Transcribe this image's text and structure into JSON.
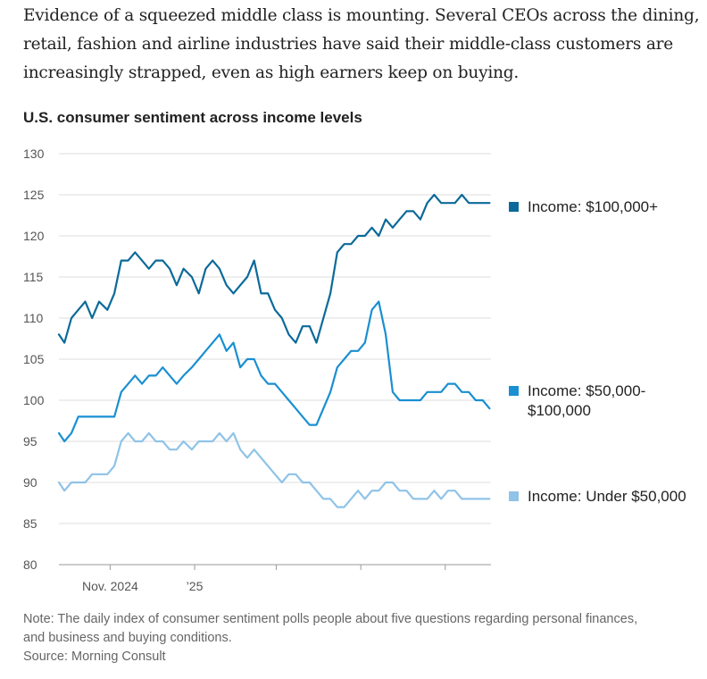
{
  "intro": {
    "line1": "Evidence of a squeezed middle class is mounting. Several CEOs across the dining,",
    "line2": "retail, fashion and airline industries have said their middle-class customers are",
    "line3": "increasingly strapped, even as high earners keep on buying."
  },
  "note": {
    "line1": "Note: The daily index of consumer sentiment polls people about five questions regarding personal finances,",
    "line2": "and business and buying conditions.",
    "line3": "Source: Morning Consult"
  },
  "chart_data": {
    "type": "line",
    "title": "U.S. consumer sentiment across income levels",
    "xlabel": "",
    "ylabel": "",
    "ylim": [
      80,
      130
    ],
    "yticks": [
      80,
      85,
      90,
      95,
      100,
      105,
      110,
      115,
      120,
      125,
      130
    ],
    "xlim": [
      "2024-09-25",
      "2025-08-03"
    ],
    "xticks": [
      {
        "date": "2024-11-01",
        "label": "Nov. 2024"
      },
      {
        "date": "2025-01-01",
        "label": "’25"
      },
      {
        "date": "2025-03-01",
        "label": ""
      },
      {
        "date": "2025-05-01",
        "label": ""
      },
      {
        "date": "2025-07-01",
        "label": ""
      }
    ],
    "grid": true,
    "legend_placement": "right, beside line ends",
    "series": [
      {
        "name": "Income: $100,000+",
        "color": "#0b6a99",
        "points": [
          [
            "2024-09-25",
            108
          ],
          [
            "2024-09-29",
            107
          ],
          [
            "2024-10-04",
            110
          ],
          [
            "2024-10-09",
            111
          ],
          [
            "2024-10-14",
            112
          ],
          [
            "2024-10-19",
            110
          ],
          [
            "2024-10-24",
            112
          ],
          [
            "2024-10-30",
            111
          ],
          [
            "2024-11-04",
            113
          ],
          [
            "2024-11-09",
            117
          ],
          [
            "2024-11-14",
            117
          ],
          [
            "2024-11-19",
            118
          ],
          [
            "2024-11-24",
            117
          ],
          [
            "2024-11-29",
            116
          ],
          [
            "2024-12-04",
            117
          ],
          [
            "2024-12-09",
            117
          ],
          [
            "2024-12-14",
            116
          ],
          [
            "2024-12-19",
            114
          ],
          [
            "2024-12-24",
            116
          ],
          [
            "2024-12-30",
            115
          ],
          [
            "2025-01-04",
            113
          ],
          [
            "2025-01-09",
            116
          ],
          [
            "2025-01-14",
            117
          ],
          [
            "2025-01-19",
            116
          ],
          [
            "2025-01-24",
            114
          ],
          [
            "2025-01-29",
            113
          ],
          [
            "2025-02-03",
            114
          ],
          [
            "2025-02-08",
            115
          ],
          [
            "2025-02-13",
            117
          ],
          [
            "2025-02-18",
            113
          ],
          [
            "2025-02-23",
            113
          ],
          [
            "2025-02-28",
            111
          ],
          [
            "2025-03-05",
            110
          ],
          [
            "2025-03-10",
            108
          ],
          [
            "2025-03-15",
            107
          ],
          [
            "2025-03-20",
            109
          ],
          [
            "2025-03-25",
            109
          ],
          [
            "2025-03-30",
            107
          ],
          [
            "2025-04-04",
            110
          ],
          [
            "2025-04-09",
            113
          ],
          [
            "2025-04-14",
            118
          ],
          [
            "2025-04-19",
            119
          ],
          [
            "2025-04-24",
            119
          ],
          [
            "2025-04-29",
            120
          ],
          [
            "2025-05-04",
            120
          ],
          [
            "2025-05-09",
            121
          ],
          [
            "2025-05-14",
            120
          ],
          [
            "2025-05-19",
            122
          ],
          [
            "2025-05-24",
            121
          ],
          [
            "2025-05-29",
            122
          ],
          [
            "2025-06-03",
            123
          ],
          [
            "2025-06-08",
            123
          ],
          [
            "2025-06-13",
            122
          ],
          [
            "2025-06-18",
            124
          ],
          [
            "2025-06-23",
            125
          ],
          [
            "2025-06-28",
            124
          ],
          [
            "2025-07-03",
            124
          ],
          [
            "2025-07-08",
            124
          ],
          [
            "2025-07-13",
            125
          ],
          [
            "2025-07-18",
            124
          ],
          [
            "2025-07-23",
            124
          ],
          [
            "2025-07-28",
            124
          ],
          [
            "2025-08-02",
            124
          ]
        ]
      },
      {
        "name": "Income: $50,000-$100,000",
        "color": "#1a8fd1",
        "points": [
          [
            "2024-09-25",
            96
          ],
          [
            "2024-09-29",
            95
          ],
          [
            "2024-10-04",
            96
          ],
          [
            "2024-10-09",
            98
          ],
          [
            "2024-10-14",
            98
          ],
          [
            "2024-10-19",
            98
          ],
          [
            "2024-10-24",
            98
          ],
          [
            "2024-10-30",
            98
          ],
          [
            "2024-11-04",
            98
          ],
          [
            "2024-11-09",
            101
          ],
          [
            "2024-11-14",
            102
          ],
          [
            "2024-11-19",
            103
          ],
          [
            "2024-11-24",
            102
          ],
          [
            "2024-11-29",
            103
          ],
          [
            "2024-12-04",
            103
          ],
          [
            "2024-12-09",
            104
          ],
          [
            "2024-12-14",
            103
          ],
          [
            "2024-12-19",
            102
          ],
          [
            "2024-12-24",
            103
          ],
          [
            "2024-12-30",
            104
          ],
          [
            "2025-01-04",
            105
          ],
          [
            "2025-01-09",
            106
          ],
          [
            "2025-01-14",
            107
          ],
          [
            "2025-01-19",
            108
          ],
          [
            "2025-01-24",
            106
          ],
          [
            "2025-01-29",
            107
          ],
          [
            "2025-02-03",
            104
          ],
          [
            "2025-02-08",
            105
          ],
          [
            "2025-02-13",
            105
          ],
          [
            "2025-02-18",
            103
          ],
          [
            "2025-02-23",
            102
          ],
          [
            "2025-02-28",
            102
          ],
          [
            "2025-03-05",
            101
          ],
          [
            "2025-03-10",
            100
          ],
          [
            "2025-03-15",
            99
          ],
          [
            "2025-03-20",
            98
          ],
          [
            "2025-03-25",
            97
          ],
          [
            "2025-03-30",
            97
          ],
          [
            "2025-04-04",
            99
          ],
          [
            "2025-04-09",
            101
          ],
          [
            "2025-04-14",
            104
          ],
          [
            "2025-04-19",
            105
          ],
          [
            "2025-04-24",
            106
          ],
          [
            "2025-04-29",
            106
          ],
          [
            "2025-05-04",
            107
          ],
          [
            "2025-05-09",
            111
          ],
          [
            "2025-05-14",
            112
          ],
          [
            "2025-05-19",
            108
          ],
          [
            "2025-05-24",
            101
          ],
          [
            "2025-05-29",
            100
          ],
          [
            "2025-06-03",
            100
          ],
          [
            "2025-06-08",
            100
          ],
          [
            "2025-06-13",
            100
          ],
          [
            "2025-06-18",
            101
          ],
          [
            "2025-06-23",
            101
          ],
          [
            "2025-06-28",
            101
          ],
          [
            "2025-07-03",
            102
          ],
          [
            "2025-07-08",
            102
          ],
          [
            "2025-07-13",
            101
          ],
          [
            "2025-07-18",
            101
          ],
          [
            "2025-07-23",
            100
          ],
          [
            "2025-07-28",
            100
          ],
          [
            "2025-08-02",
            99
          ]
        ]
      },
      {
        "name": "Income: Under $50,000",
        "color": "#8fc3e8",
        "points": [
          [
            "2024-09-25",
            90
          ],
          [
            "2024-09-29",
            89
          ],
          [
            "2024-10-04",
            90
          ],
          [
            "2024-10-09",
            90
          ],
          [
            "2024-10-14",
            90
          ],
          [
            "2024-10-19",
            91
          ],
          [
            "2024-10-24",
            91
          ],
          [
            "2024-10-30",
            91
          ],
          [
            "2024-11-04",
            92
          ],
          [
            "2024-11-09",
            95
          ],
          [
            "2024-11-14",
            96
          ],
          [
            "2024-11-19",
            95
          ],
          [
            "2024-11-24",
            95
          ],
          [
            "2024-11-29",
            96
          ],
          [
            "2024-12-04",
            95
          ],
          [
            "2024-12-09",
            95
          ],
          [
            "2024-12-14",
            94
          ],
          [
            "2024-12-19",
            94
          ],
          [
            "2024-12-24",
            95
          ],
          [
            "2024-12-30",
            94
          ],
          [
            "2025-01-04",
            95
          ],
          [
            "2025-01-09",
            95
          ],
          [
            "2025-01-14",
            95
          ],
          [
            "2025-01-19",
            96
          ],
          [
            "2025-01-24",
            95
          ],
          [
            "2025-01-29",
            96
          ],
          [
            "2025-02-03",
            94
          ],
          [
            "2025-02-08",
            93
          ],
          [
            "2025-02-13",
            94
          ],
          [
            "2025-02-18",
            93
          ],
          [
            "2025-02-23",
            92
          ],
          [
            "2025-02-28",
            91
          ],
          [
            "2025-03-05",
            90
          ],
          [
            "2025-03-10",
            91
          ],
          [
            "2025-03-15",
            91
          ],
          [
            "2025-03-20",
            90
          ],
          [
            "2025-03-25",
            90
          ],
          [
            "2025-03-30",
            89
          ],
          [
            "2025-04-04",
            88
          ],
          [
            "2025-04-09",
            88
          ],
          [
            "2025-04-14",
            87
          ],
          [
            "2025-04-19",
            87
          ],
          [
            "2025-04-24",
            88
          ],
          [
            "2025-04-29",
            89
          ],
          [
            "2025-05-04",
            88
          ],
          [
            "2025-05-09",
            89
          ],
          [
            "2025-05-14",
            89
          ],
          [
            "2025-05-19",
            90
          ],
          [
            "2025-05-24",
            90
          ],
          [
            "2025-05-29",
            89
          ],
          [
            "2025-06-03",
            89
          ],
          [
            "2025-06-08",
            88
          ],
          [
            "2025-06-13",
            88
          ],
          [
            "2025-06-18",
            88
          ],
          [
            "2025-06-23",
            89
          ],
          [
            "2025-06-28",
            88
          ],
          [
            "2025-07-03",
            89
          ],
          [
            "2025-07-08",
            89
          ],
          [
            "2025-07-13",
            88
          ],
          [
            "2025-07-18",
            88
          ],
          [
            "2025-07-23",
            88
          ],
          [
            "2025-07-28",
            88
          ],
          [
            "2025-08-02",
            88
          ]
        ]
      }
    ]
  }
}
